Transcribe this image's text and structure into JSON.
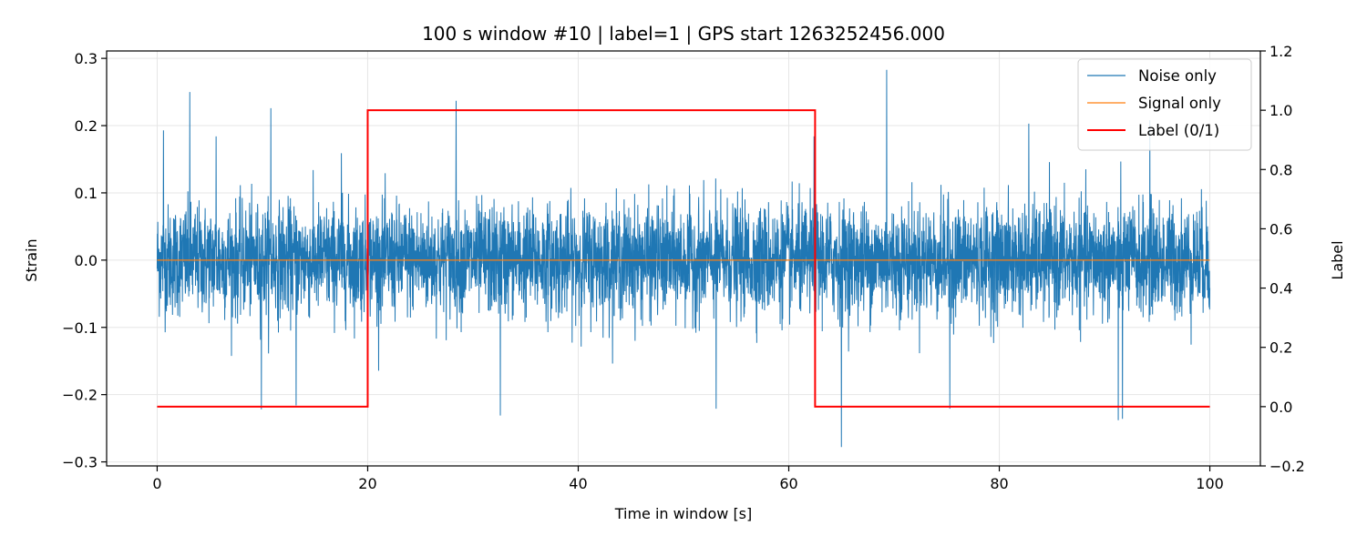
{
  "chart_data": {
    "type": "line",
    "title": "100 s window #10 | label=1 | GPS start 1263252456.000",
    "xlabel": "Time in window [s]",
    "ylabel": "Strain",
    "y2label": "Label",
    "xlim": [
      -4.8,
      104.8
    ],
    "ylim": [
      -0.306,
      0.311
    ],
    "y2lim": [
      -0.2,
      1.2
    ],
    "xticks": [
      0,
      20,
      40,
      60,
      80,
      100
    ],
    "yticks": [
      -0.3,
      -0.2,
      -0.1,
      0.0,
      0.1,
      0.2,
      0.3
    ],
    "y2ticks": [
      -0.2,
      0.0,
      0.2,
      0.4,
      0.6,
      0.8,
      1.0,
      1.2
    ],
    "grid": true,
    "legend_position": "top-right",
    "series": [
      {
        "name": "Noise only",
        "axis": "left",
        "color": "#1f77b4",
        "description_stats": {
          "x_range": [
            0,
            100
          ],
          "typical_amplitude": 0.09,
          "max": 0.283,
          "min": -0.278
        },
        "extremes": [
          {
            "x": 0.6,
            "y": 0.193
          },
          {
            "x": 3.1,
            "y": 0.25
          },
          {
            "x": 5.6,
            "y": 0.184
          },
          {
            "x": 10.8,
            "y": 0.226
          },
          {
            "x": 17.5,
            "y": 0.159
          },
          {
            "x": 28.4,
            "y": 0.237
          },
          {
            "x": 62.4,
            "y": 0.184
          },
          {
            "x": 69.3,
            "y": 0.283
          },
          {
            "x": 82.8,
            "y": 0.203
          },
          {
            "x": 94.3,
            "y": 0.208
          },
          {
            "x": 9.9,
            "y": -0.222
          },
          {
            "x": 13.2,
            "y": -0.216
          },
          {
            "x": 32.6,
            "y": -0.231
          },
          {
            "x": 53.1,
            "y": -0.221
          },
          {
            "x": 65.0,
            "y": -0.278
          },
          {
            "x": 75.3,
            "y": -0.221
          },
          {
            "x": 91.3,
            "y": -0.238
          },
          {
            "x": 91.7,
            "y": -0.236
          }
        ]
      },
      {
        "name": "Signal only",
        "axis": "left",
        "color": "#ff7f0e",
        "x": [
          0,
          100
        ],
        "y": [
          0.0,
          0.0
        ]
      },
      {
        "name": "Label (0/1)",
        "axis": "right",
        "color": "#ff0000",
        "x": [
          0,
          20,
          20,
          62.5,
          62.5,
          100
        ],
        "y": [
          0,
          0,
          1,
          1,
          0,
          0
        ]
      }
    ]
  }
}
